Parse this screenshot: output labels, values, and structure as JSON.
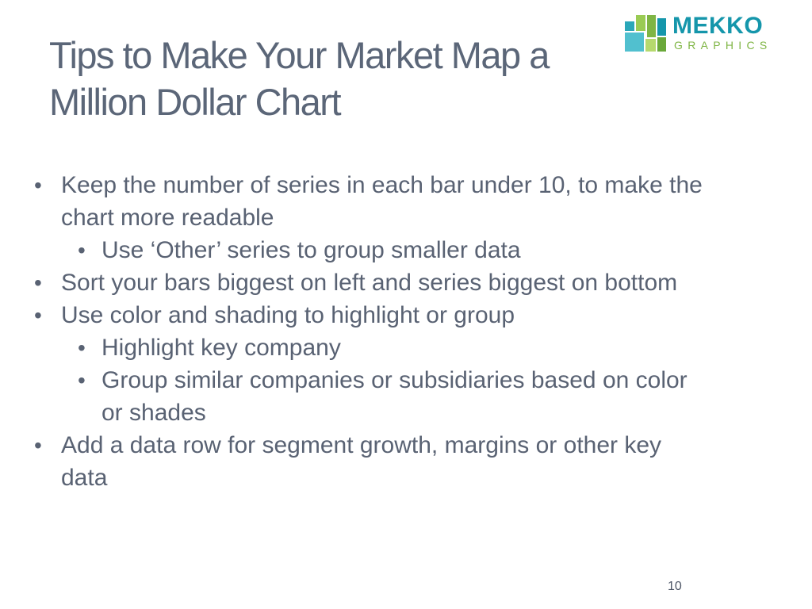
{
  "title": {
    "line1": "Tips to Make Your Market Map a",
    "line2": "Million Dollar Chart"
  },
  "logo": {
    "word": "MEKKO",
    "subword": "GRAPHICS",
    "colors": {
      "teal": "#1596ab",
      "green": "#7fb544",
      "light_teal": "#51c0cf",
      "lime": "#9acb54"
    }
  },
  "bullets": [
    {
      "level": 1,
      "text": "Keep the number of series in each bar under 10, to make the chart more readable"
    },
    {
      "level": 2,
      "text": "Use ‘Other’ series to group smaller data"
    },
    {
      "level": 1,
      "text": "Sort your bars biggest on left and series biggest on bottom"
    },
    {
      "level": 1,
      "text": "Use color and shading to highlight or group"
    },
    {
      "level": 2,
      "text": "Highlight key company"
    },
    {
      "level": 2,
      "text": "Group similar companies or subsidiaries based on color or shades"
    },
    {
      "level": 1,
      "text": "Add a data row for segment growth, margins or other key data"
    }
  ],
  "bullet_glyph": "•",
  "page_number": "10",
  "colors": {
    "title": "#5b6678",
    "body": "#596273",
    "background": "#ffffff"
  }
}
